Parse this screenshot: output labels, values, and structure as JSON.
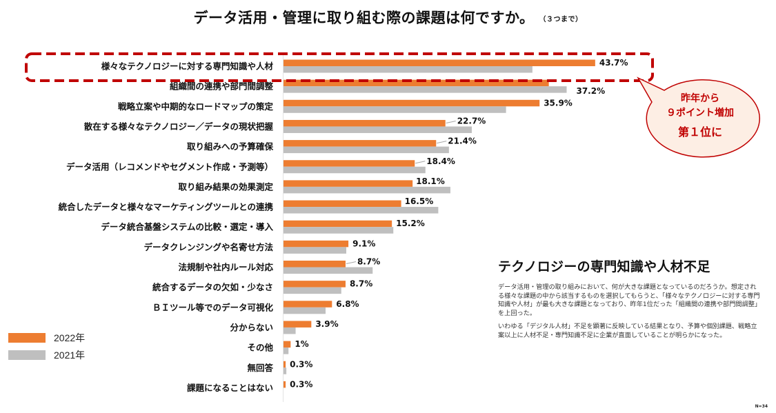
{
  "title": {
    "main": "データ活用・管理に取り組む際の課題は何ですか。",
    "note": "（３つまで）"
  },
  "chart_data": {
    "type": "bar",
    "orientation": "horizontal",
    "title": "データ活用・管理に取り組む際の課題は何ですか。（３つまで）",
    "xlabel": "",
    "ylabel": "",
    "unit": "%",
    "xlim": [
      0,
      45
    ],
    "grid": false,
    "legend_position": "bottom-left",
    "categories": [
      "様々なテクノロジーに対する専門知識や人材",
      "組織間の連携や部門間調整",
      "戦略立案や中期的なロードマップの策定",
      "散在する様々なテクノロジー／データの現状把握",
      "取り組みへの予算確保",
      "データ活用（レコメンドやセグメント作成・予測等）",
      "取り組み結果の効果測定",
      "統合したデータと様々なマーケティングツールとの連携",
      "データ統合基盤システムの比較・選定・導入",
      "データクレンジングや名寄せ方法",
      "法規制や社内ルール対応",
      "統合するデータの欠如・少なさ",
      "ＢＩツール等でのデータ可視化",
      "分からない",
      "その他",
      "無回答",
      "課題になることはない"
    ],
    "series": [
      {
        "name": "2022年",
        "color": "#ed7d31",
        "values": [
          43.7,
          37.2,
          35.9,
          22.7,
          21.4,
          18.4,
          18.1,
          16.5,
          15.2,
          9.1,
          8.7,
          8.7,
          6.8,
          3.9,
          1,
          0.3,
          0.3
        ],
        "labels": [
          "43.7%",
          "37.2%",
          "35.9%",
          "22.7%",
          "21.4%",
          "18.4%",
          "18.1%",
          "16.5%",
          "15.2%",
          "9.1%",
          "8.7%",
          "8.7%",
          "6.8%",
          "3.9%",
          "1%",
          "0.3%",
          "0.3%"
        ]
      },
      {
        "name": "2021年",
        "color": "#bfbfbf",
        "values": [
          34.9,
          39.7,
          31.2,
          26.4,
          23.2,
          19.9,
          23.4,
          21.7,
          15.4,
          8.8,
          12.5,
          8.1,
          5.9,
          1.7,
          0.7,
          0.4,
          0
        ]
      }
    ],
    "highlight_category_index": 0,
    "callout": {
      "lines": [
        "昨年から",
        "９ポイント増加",
        "第１位に"
      ]
    }
  },
  "legend": [
    {
      "label": "2022年",
      "color": "#ed7d31"
    },
    {
      "label": "2021年",
      "color": "#bfbfbf"
    }
  ],
  "side": {
    "heading": "テクノロジーの専門知識や人材不足",
    "paragraphs": [
      "データ活用・管理の取り組みにおいて、何が大きな課題となっているのだろうか。想定される様々な課題の中から該当するものを選択してもらうと、「様々なテクノロジーに対する専門知識や人材」が最も大きな課題となっており、昨年1位だった「組織間の連携や部門間調整」を上回った。",
      "いわゆる「デジタル人材」不足を顕著に反映している結果となり、予算や個別課題、戦略立案以上に人材不足・専門知識不足に企業が直面していることが明らかになった。"
    ]
  },
  "footnote": "N=34",
  "colors": {
    "highlight": "#c00000",
    "callout_fill": "#fdeee4"
  }
}
